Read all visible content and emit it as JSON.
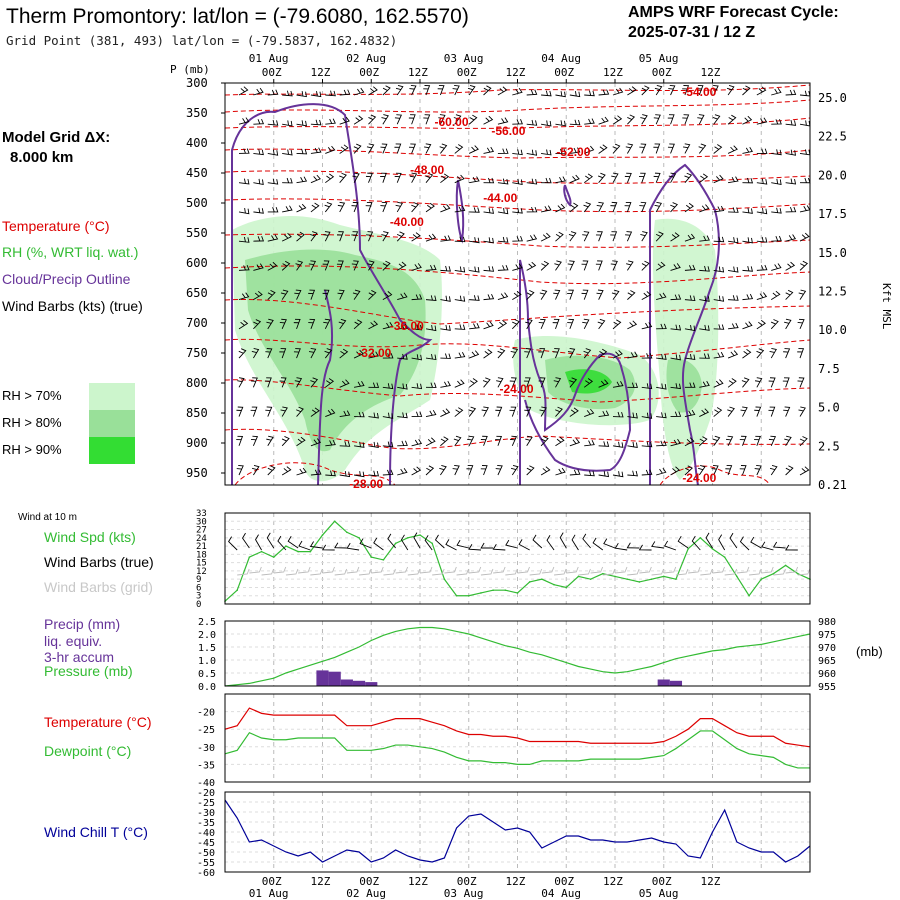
{
  "header": {
    "title": "Therm Promontory:  lat/lon = (-79.6080, 162.5570)",
    "grid_point": "Grid Point (381, 493) lat/lon = (-79.5837, 162.4832)",
    "cycle_label": "AMPS WRF Forecast Cycle:",
    "cycle_value": "2025-07-31 / 12  Z",
    "model_grid_label": "Model Grid ΔX:",
    "model_grid_value": "8.000 km"
  },
  "legend": {
    "temperature": "Temperature (°C)",
    "rh": "RH (%, WRT liq. wat.)",
    "cloud": "Cloud/Precip Outline",
    "wind": "Wind Barbs (kts) (true)",
    "rh70": "RH > 70%",
    "rh80": "RH > 80%",
    "rh90": "RH > 90%"
  },
  "colors": {
    "temperature": "#dd0000",
    "rh_label": "#33bb33",
    "cloud": "#663399",
    "rh70": "#ccf5cc",
    "rh80": "#99e099",
    "rh90": "#33dd33",
    "blue": "#000099"
  },
  "time_axis": {
    "ticks": [
      "00Z",
      "12Z",
      "00Z",
      "12Z",
      "00Z",
      "12Z",
      "00Z",
      "12Z",
      "00Z",
      "12Z"
    ],
    "dates": [
      "01 Aug",
      "02 Aug",
      "03 Aug",
      "04 Aug",
      "05 Aug"
    ]
  },
  "panel_labels": {
    "pressure_axis": "P (mb)",
    "kft": "Kft MSL",
    "wind10m": "Wind at 10 m",
    "wind_spd": "Wind Spd (kts)",
    "wind_barbs_true": "Wind Barbs (true)",
    "wind_barbs_grid": "Wind Barbs (grid)",
    "precip1": "Precip (mm)",
    "precip2": "liq. equiv.",
    "precip3": "3-hr accum",
    "pressure": "Pressure (mb)",
    "mb_unit": "(mb)",
    "temperature": "Temperature (°C)",
    "dewpoint": "Dewpoint (°C)",
    "windchill": "Wind Chill T (°C)"
  },
  "chart_data": [
    {
      "type": "heatmap",
      "name": "cross-section",
      "y_ticks": [
        "300",
        "350",
        "400",
        "450",
        "500",
        "550",
        "600",
        "650",
        "700",
        "750",
        "800",
        "850",
        "900",
        "950"
      ],
      "kft_ticks": [
        "25.0",
        "22.5",
        "20.0",
        "17.5",
        "15.0",
        "12.5",
        "10.0",
        "7.5",
        "5.0",
        "2.5",
        "0.21"
      ],
      "temp_labels": [
        {
          "text": "-54.00",
          "t": 117,
          "p": 315
        },
        {
          "text": "-60.00",
          "t": 56,
          "p": 365
        },
        {
          "text": "-56.00",
          "t": 70,
          "p": 380
        },
        {
          "text": "-52.00",
          "t": 86,
          "p": 415
        },
        {
          "text": "-48.00",
          "t": 50,
          "p": 445
        },
        {
          "text": "-44.00",
          "t": 68,
          "p": 492
        },
        {
          "text": "-40.00",
          "t": 45,
          "p": 532
        },
        {
          "text": "-36.00",
          "t": 45,
          "p": 705
        },
        {
          "text": "-32.00",
          "t": 37,
          "p": 750
        },
        {
          "text": "-24.00",
          "t": 72,
          "p": 810
        },
        {
          "text": "-24.00",
          "t": 117,
          "p": 958
        },
        {
          "text": "-28.00",
          "t": 35,
          "p": 968
        }
      ]
    },
    {
      "type": "line",
      "name": "wind-10m",
      "y_ticks": [
        "33",
        "30",
        "27",
        "24",
        "21",
        "18",
        "15",
        "12",
        "9",
        "6",
        "3",
        "0"
      ],
      "ylim": [
        0,
        33
      ],
      "x_hours": [
        0,
        3,
        6,
        9,
        12,
        15,
        18,
        21,
        24,
        27,
        30,
        33,
        36,
        39,
        42,
        45,
        48,
        51,
        54,
        57,
        60,
        63,
        66,
        69,
        72,
        75,
        78,
        81,
        84,
        87,
        90,
        93,
        96,
        99,
        102,
        105,
        108,
        111,
        114,
        117,
        120,
        123,
        126,
        129,
        132,
        135,
        138,
        141,
        144
      ],
      "series": [
        {
          "values": [
            1,
            5,
            17,
            19,
            17,
            21,
            19,
            19,
            25,
            30,
            26,
            24,
            17,
            16,
            22,
            24,
            25,
            22,
            9,
            3,
            3,
            4,
            5,
            5,
            4,
            8,
            9,
            7,
            6,
            10,
            9,
            11,
            10,
            9,
            8,
            9,
            10,
            9,
            20,
            24,
            20,
            17,
            10,
            3,
            9,
            11,
            14,
            11,
            9
          ]
        }
      ]
    },
    {
      "type": "bar",
      "name": "precip-pressure",
      "y_ticks": [
        "2.5",
        "2.0",
        "1.5",
        "1.0",
        "0.5",
        "0.0"
      ],
      "y2_ticks": [
        "980",
        "975",
        "970",
        "965",
        "960",
        "955"
      ],
      "ylim": [
        0,
        2.5
      ],
      "y2lim": [
        955,
        980
      ],
      "bars": [
        {
          "x": 24,
          "value": 0.6
        },
        {
          "x": 27,
          "value": 0.55
        },
        {
          "x": 30,
          "value": 0.25
        },
        {
          "x": 33,
          "value": 0.2
        },
        {
          "x": 36,
          "value": 0.15
        },
        {
          "x": 108,
          "value": 0.25
        },
        {
          "x": 111,
          "value": 0.2
        }
      ],
      "series": [
        {
          "values": [
            955,
            955.5,
            956,
            957,
            958,
            960,
            961.5,
            963,
            964.5,
            966,
            968,
            970,
            972.5,
            974.5,
            976,
            977,
            977.5,
            977.5,
            977,
            976,
            975,
            973.5,
            972,
            970.5,
            969.5,
            968,
            967,
            965.5,
            964,
            962.5,
            961.5,
            960.5,
            960,
            960.5,
            961.5,
            962.5,
            964,
            965.5,
            966.5,
            967.5,
            968.5,
            969,
            970,
            970.5,
            971,
            972,
            973,
            974,
            975
          ]
        }
      ]
    },
    {
      "type": "line",
      "name": "temperature-dewpoint",
      "y_ticks": [
        "-20",
        "-25",
        "-30",
        "-35",
        "-40"
      ],
      "ylim": [
        -40,
        -15
      ],
      "series": [
        {
          "values": [
            -25,
            -24,
            -19,
            -20.5,
            -21,
            -21,
            -21,
            -21,
            -21,
            -21,
            -24,
            -24,
            -24,
            -23,
            -22,
            -22,
            -22,
            -23,
            -24,
            -25.5,
            -26.5,
            -26.5,
            -27,
            -27,
            -27.5,
            -28.5,
            -28.5,
            -28.5,
            -28.5,
            -28.5,
            -29,
            -29,
            -29,
            -29,
            -29,
            -29,
            -28.5,
            -27,
            -25,
            -22,
            -22,
            -24,
            -26,
            -27,
            -27,
            -27,
            -29,
            -29.5,
            -30
          ]
        },
        {
          "values": [
            -32,
            -31,
            -26,
            -27.5,
            -28,
            -28,
            -27.5,
            -27.5,
            -27.5,
            -27.5,
            -31,
            -31,
            -31,
            -30.5,
            -29.5,
            -29.5,
            -30,
            -30.5,
            -31.5,
            -33,
            -34,
            -34,
            -34.5,
            -34.5,
            -35,
            -35,
            -34,
            -34,
            -34,
            -34,
            -33.5,
            -33.5,
            -33.5,
            -33.5,
            -33.5,
            -33,
            -32.5,
            -30.5,
            -28,
            -25.5,
            -25.5,
            -28,
            -30.5,
            -32,
            -32.5,
            -33,
            -35,
            -36,
            -36
          ]
        }
      ]
    },
    {
      "type": "line",
      "name": "wind-chill",
      "y_ticks": [
        "-20",
        "-25",
        "-30",
        "-35",
        "-40",
        "-45",
        "-50",
        "-55",
        "-60"
      ],
      "ylim": [
        -60,
        -20
      ],
      "series": [
        {
          "values": [
            -24,
            -33,
            -45,
            -44,
            -47,
            -50,
            -52,
            -50,
            -55,
            -52,
            -49,
            -50,
            -55,
            -53,
            -49,
            -52,
            -54,
            -55,
            -53,
            -38,
            -32,
            -31,
            -35,
            -39,
            -38,
            -40,
            -48,
            -45,
            -42,
            -42,
            -44,
            -44,
            -45,
            -45,
            -44,
            -43,
            -45,
            -46,
            -52,
            -53,
            -40,
            -29,
            -45,
            -48,
            -50,
            -50,
            -55,
            -52,
            -47
          ]
        }
      ]
    }
  ]
}
